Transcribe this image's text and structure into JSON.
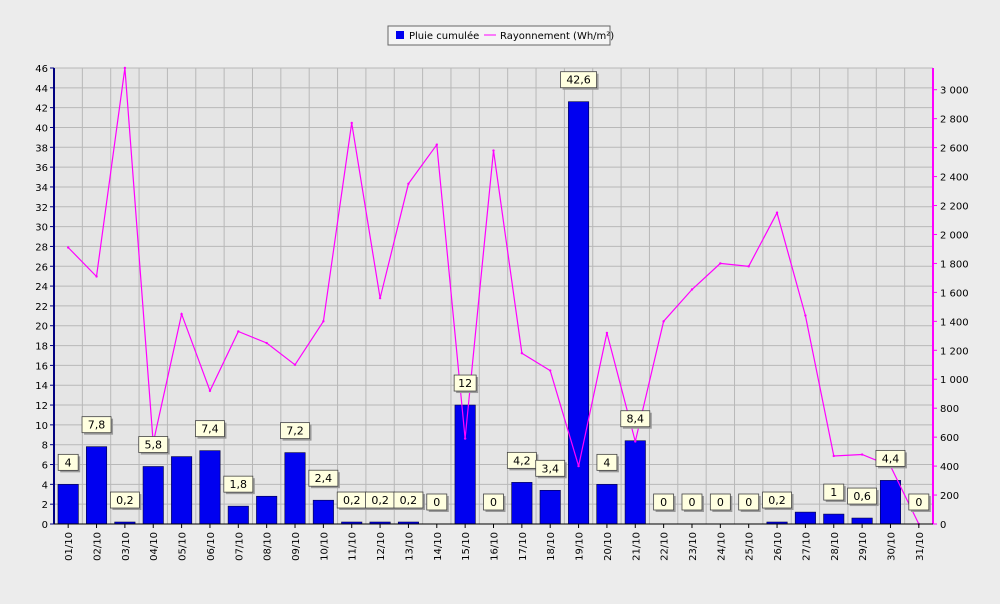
{
  "colors": {
    "background": "#ececec",
    "plot_area": "#e5e5e5",
    "grid": "#b8b8b8",
    "bar": "#0000f0",
    "line": "#ff00ff",
    "left_axis": "#000080",
    "right_axis": "#ff00ff",
    "label_box": "#ffffe0"
  },
  "chart_data": {
    "type": "bar",
    "categories": [
      "01/10",
      "02/10",
      "03/10",
      "04/10",
      "05/10",
      "06/10",
      "07/10",
      "08/10",
      "09/10",
      "10/10",
      "11/10",
      "12/10",
      "13/10",
      "14/10",
      "15/10",
      "16/10",
      "17/10",
      "18/10",
      "19/10",
      "20/10",
      "21/10",
      "22/10",
      "23/10",
      "24/10",
      "25/10",
      "26/10",
      "27/10",
      "28/10",
      "29/10",
      "30/10",
      "31/10"
    ],
    "series": [
      {
        "name": "Pluie cumulée",
        "type": "bar",
        "axis": "left",
        "values": [
          4,
          7.8,
          0.2,
          5.8,
          6.8,
          7.4,
          1.8,
          2.8,
          7.2,
          2.4,
          0.2,
          0.2,
          0.2,
          0,
          12,
          0,
          4.2,
          3.4,
          42.6,
          4,
          8.4,
          0,
          0,
          0,
          0,
          0.2,
          1.2,
          1,
          0.6,
          4.4,
          0
        ]
      },
      {
        "name": "Rayonnement (Wh/m²)",
        "type": "line",
        "axis": "right",
        "values": [
          1910,
          1710,
          3150,
          560,
          1450,
          920,
          1330,
          1250,
          1100,
          1400,
          2770,
          1560,
          2350,
          2620,
          590,
          2580,
          1180,
          1060,
          400,
          1320,
          570,
          1400,
          1620,
          1800,
          1780,
          2150,
          1440,
          470,
          480,
          400,
          0
        ]
      }
    ],
    "data_labels": [
      "4",
      "7,8",
      "0,2",
      "5,8",
      "",
      "7,4",
      "1,8",
      "",
      "7,2",
      "2,4",
      "0,2",
      "0,2",
      "0,2",
      "0",
      "12",
      "0",
      "4,2",
      "3,4",
      "42,6",
      "4",
      "8,4",
      "0",
      "0",
      "0",
      "0",
      "0,2",
      "",
      "1",
      "0,6",
      "4,4",
      "0"
    ],
    "y_left": {
      "min": 0,
      "max": 46,
      "step": 2,
      "ticks": [
        "0",
        "2",
        "4",
        "6",
        "8",
        "10",
        "12",
        "14",
        "16",
        "18",
        "20",
        "22",
        "24",
        "26",
        "28",
        "30",
        "32",
        "34",
        "36",
        "38",
        "40",
        "42",
        "44",
        "46"
      ]
    },
    "y_right": {
      "min": 0,
      "max": 3150,
      "ticks": [
        "0",
        "200",
        "400",
        "600",
        "800",
        "1 000",
        "1 200",
        "1 400",
        "1 600",
        "1 800",
        "2 000",
        "2 200",
        "2 400",
        "2 600",
        "2 800",
        "3 000"
      ]
    },
    "legend_position": "top-center",
    "grid": true
  }
}
